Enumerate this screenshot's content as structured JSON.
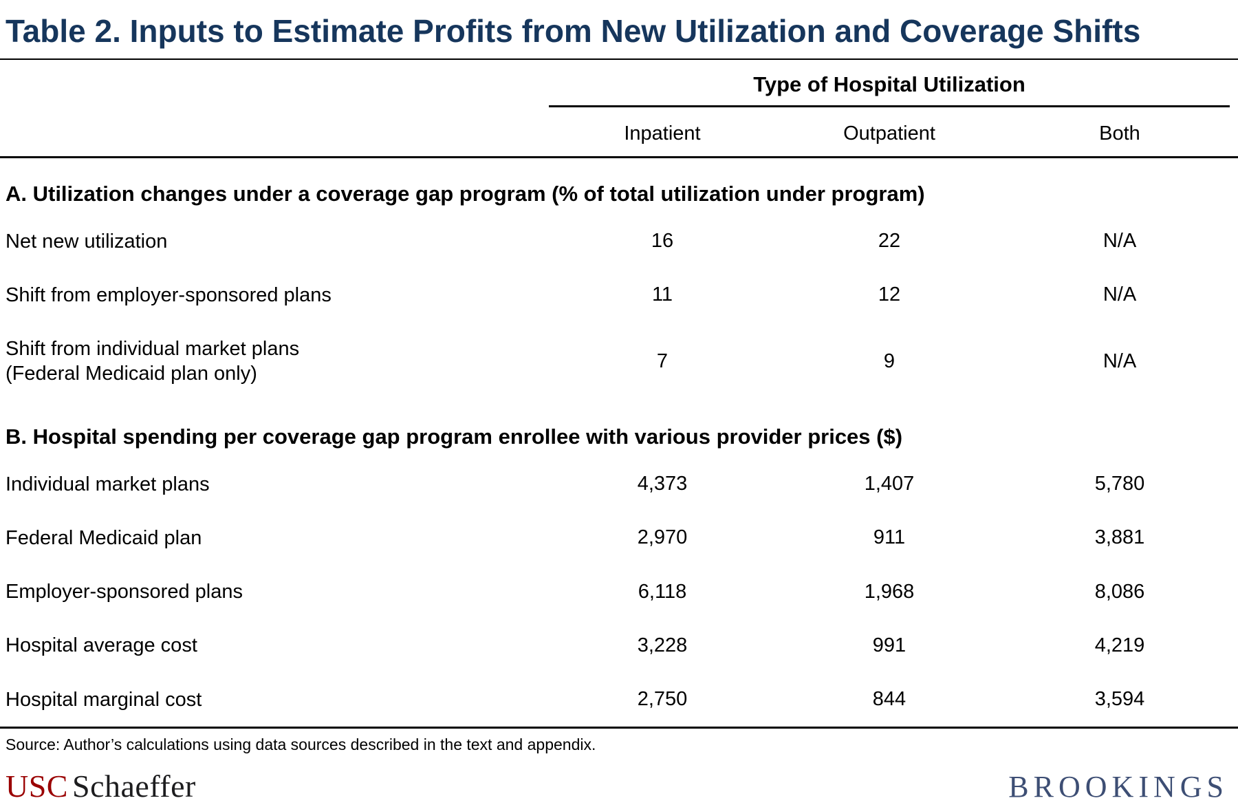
{
  "title": "Table 2. Inputs to Estimate Profits from New Utilization and Coverage Shifts",
  "table": {
    "column_group_header": "Type of Hospital Utilization",
    "columns": [
      "Inpatient",
      "Outpatient",
      "Both"
    ],
    "sections": [
      {
        "header": "A. Utilization changes under a coverage gap program (% of total utilization under program)",
        "rows": [
          {
            "label": "Net new utilization",
            "values": [
              "16",
              "22",
              "N/A"
            ]
          },
          {
            "label": "Shift from employer-sponsored plans",
            "values": [
              "11",
              "12",
              "N/A"
            ]
          },
          {
            "label": "Shift from individual market plans\n(Federal Medicaid plan only)",
            "values": [
              "7",
              "9",
              "N/A"
            ]
          }
        ]
      },
      {
        "header": "B. Hospital spending per coverage gap program enrollee with various provider prices ($)",
        "rows": [
          {
            "label": "Individual market plans",
            "values": [
              "4,373",
              "1,407",
              "5,780"
            ]
          },
          {
            "label": "Federal Medicaid plan",
            "values": [
              "2,970",
              "911",
              "3,881"
            ]
          },
          {
            "label": "Employer-sponsored plans",
            "values": [
              "6,118",
              "1,968",
              "8,086"
            ]
          },
          {
            "label": "Hospital average cost",
            "values": [
              "3,228",
              "991",
              "4,219"
            ]
          },
          {
            "label": "Hospital marginal cost",
            "values": [
              "2,750",
              "844",
              "3,594"
            ]
          }
        ]
      }
    ],
    "source_note": "Source: Author’s calculations using data sources described in the text and appendix."
  },
  "footer": {
    "usc": "USC",
    "schaeffer": "Schaeffer",
    "brookings": "BROOKINGS"
  },
  "colors": {
    "title_navy": "#16365c",
    "usc_cardinal": "#9a0000",
    "brookings_blue": "#3d4e74",
    "text": "#000000",
    "background": "#ffffff"
  }
}
